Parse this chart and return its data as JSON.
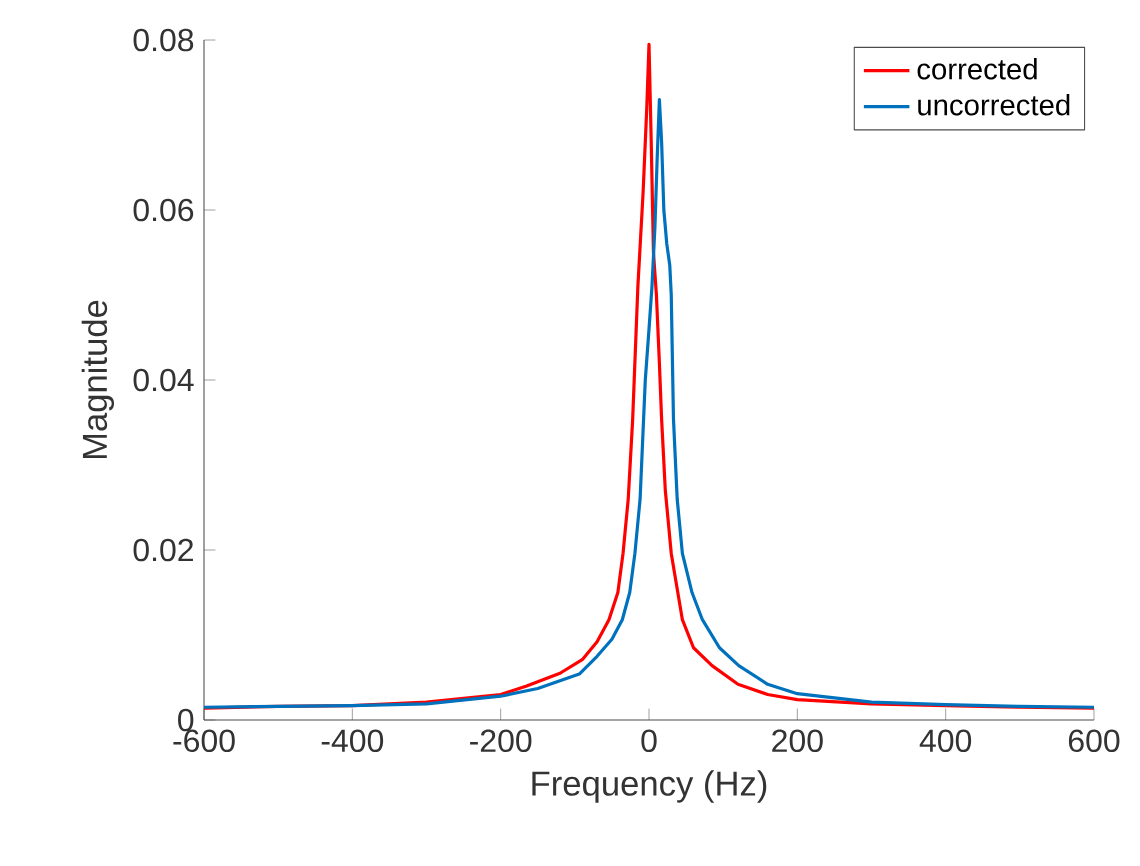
{
  "chart_data": {
    "type": "line",
    "xlabel": "Frequency (Hz)",
    "ylabel": "Magnitude",
    "xlim": [
      -600,
      600
    ],
    "xticks": [
      -600,
      -400,
      -200,
      0,
      200,
      400,
      600
    ],
    "ylim": [
      0,
      0.08
    ],
    "yticks": [
      0,
      0.02,
      0.04,
      0.06,
      0.08
    ],
    "legend": "top right",
    "grid": false,
    "series": [
      {
        "name": "corrected",
        "color": "#ff0000",
        "x": [
          -600,
          -500,
          -400,
          -300,
          -200,
          -165,
          -120,
          -90,
          -70,
          -54,
          -42,
          -35,
          -28,
          -22,
          -15,
          -8,
          -3,
          0,
          3,
          6,
          10,
          14,
          17,
          22,
          30,
          45,
          60,
          85,
          120,
          160,
          200,
          300,
          400,
          500,
          600
        ],
        "values": [
          0.0014,
          0.0016,
          0.0017,
          0.0021,
          0.003,
          0.004,
          0.0055,
          0.0071,
          0.0092,
          0.0118,
          0.015,
          0.0196,
          0.026,
          0.0354,
          0.051,
          0.062,
          0.072,
          0.0795,
          0.068,
          0.055,
          0.05,
          0.042,
          0.0354,
          0.027,
          0.0196,
          0.0118,
          0.0085,
          0.0064,
          0.0042,
          0.003,
          0.0024,
          0.0019,
          0.0017,
          0.0015,
          0.0014
        ]
      },
      {
        "name": "uncorrected",
        "color": "#0072bd",
        "x": [
          -600,
          -500,
          -400,
          -300,
          -200,
          -150,
          -94,
          -70,
          -50,
          -36,
          -26,
          -19,
          -12,
          -5,
          0,
          4,
          8,
          11,
          14,
          17,
          20,
          24,
          28,
          30,
          33,
          38,
          45,
          58,
          72,
          95,
          121,
          160,
          200,
          300,
          400,
          500,
          600
        ],
        "values": [
          0.0015,
          0.0016,
          0.0017,
          0.0019,
          0.0028,
          0.0037,
          0.0054,
          0.0075,
          0.0095,
          0.0118,
          0.015,
          0.0196,
          0.026,
          0.04,
          0.046,
          0.051,
          0.058,
          0.066,
          0.073,
          0.068,
          0.06,
          0.056,
          0.0535,
          0.05,
          0.0354,
          0.026,
          0.0196,
          0.015,
          0.0118,
          0.0085,
          0.0064,
          0.0042,
          0.0031,
          0.0021,
          0.0018,
          0.0016,
          0.0015
        ]
      }
    ]
  }
}
